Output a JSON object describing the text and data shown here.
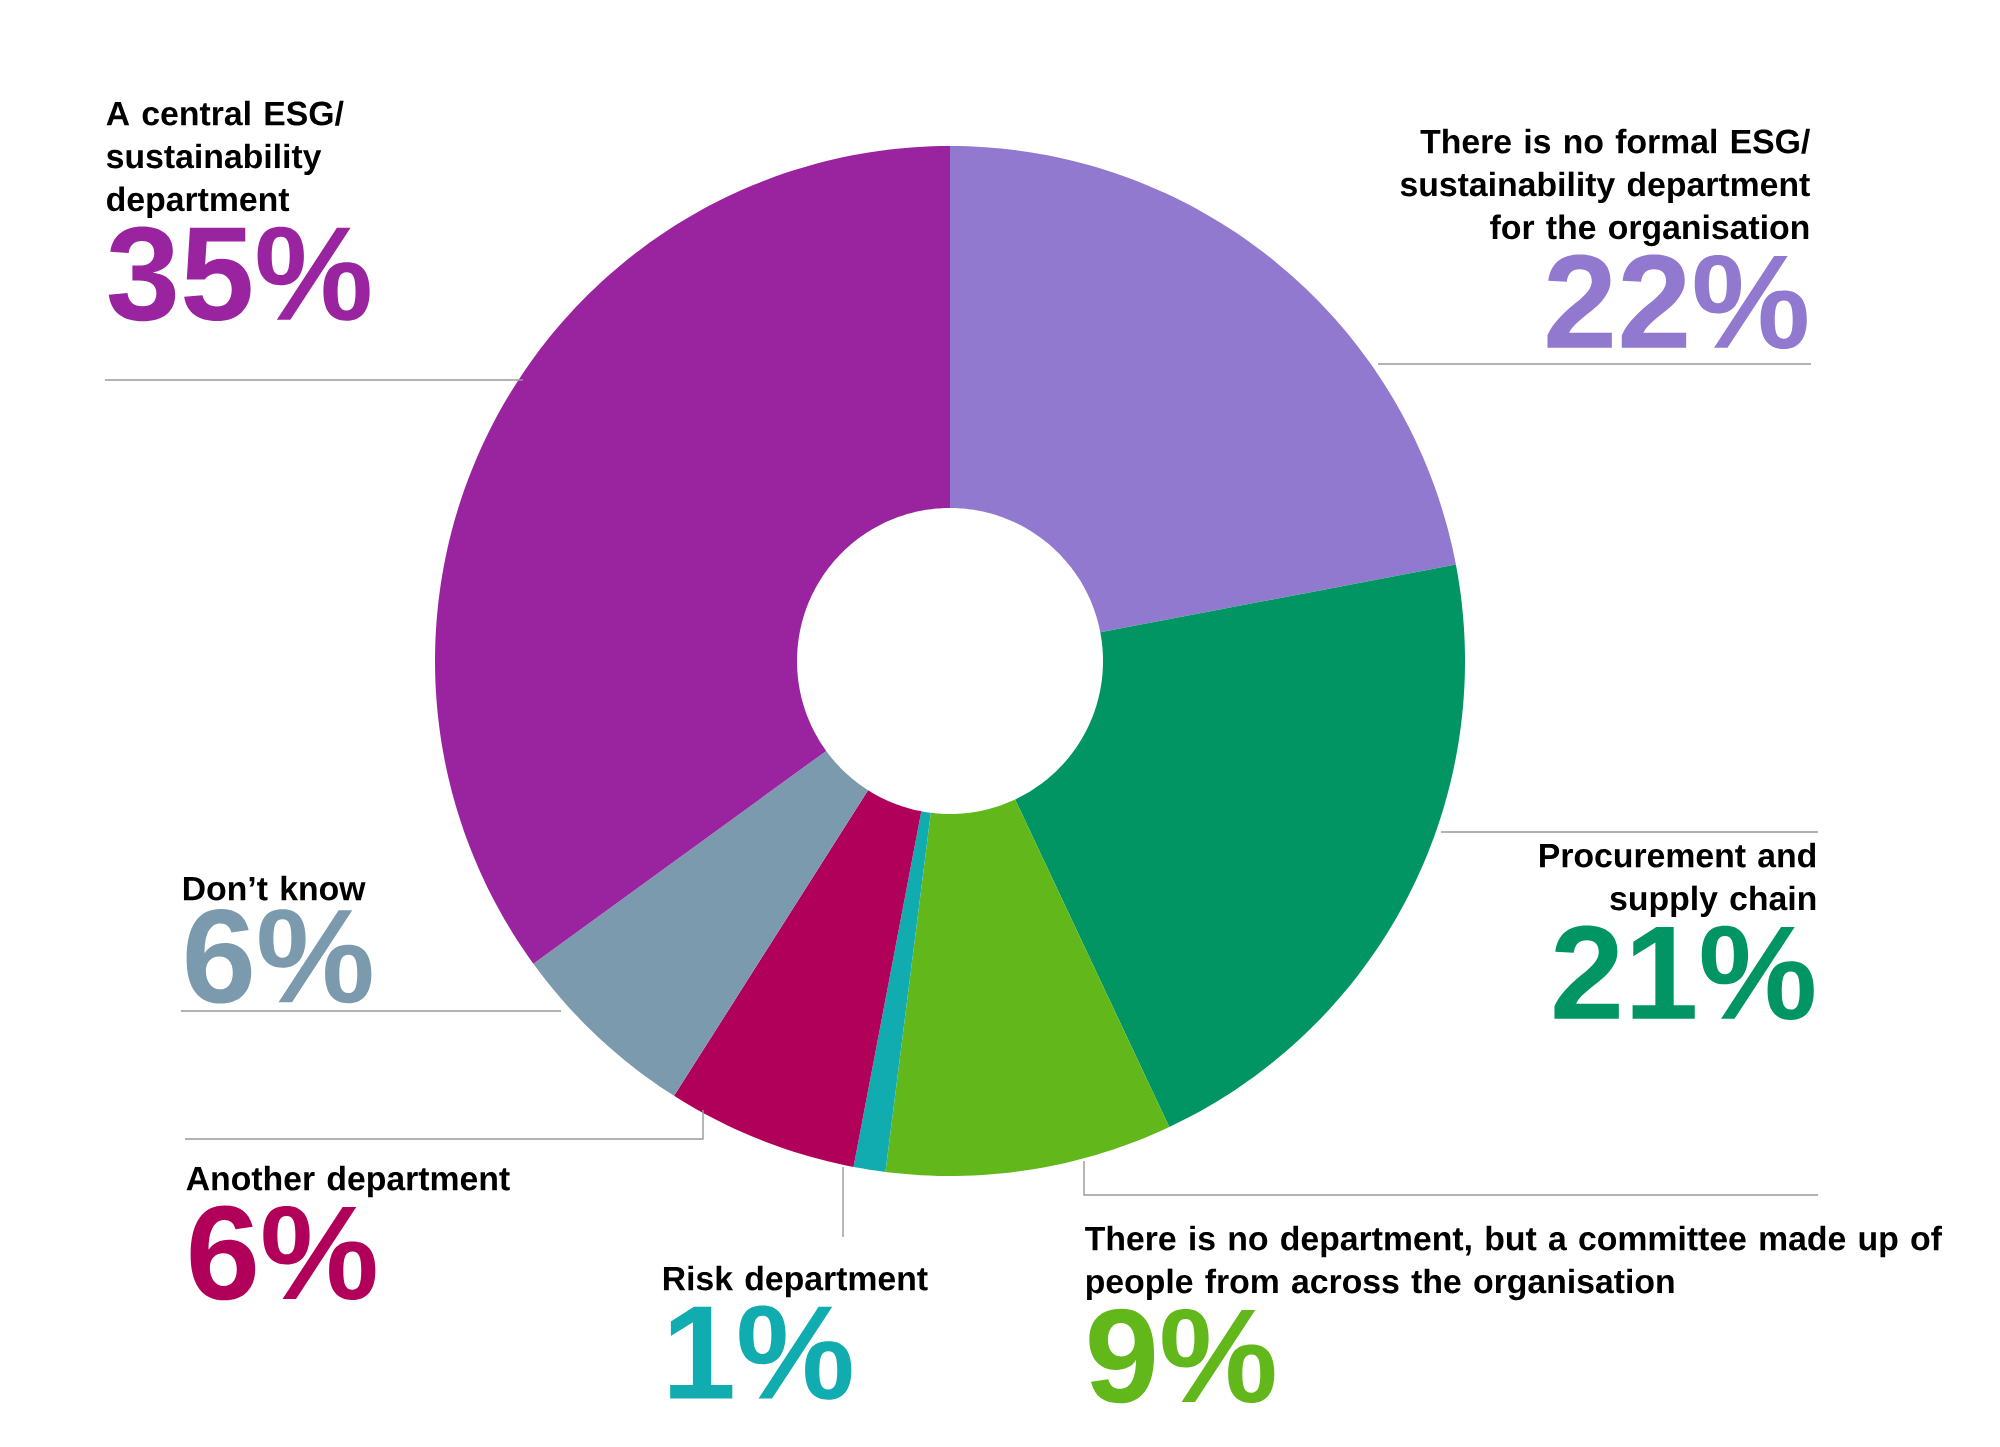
{
  "chart_data": {
    "type": "donut",
    "categories": [
      "There is no formal ESG/ sustainability department for the organisation",
      "Procurement and supply chain",
      "There is no department, but a committee made up of people from across the organisation",
      "Risk department",
      "Another department",
      "Don’t know",
      "A central ESG/ sustainability department"
    ],
    "values": [
      22,
      21,
      9,
      1,
      6,
      6,
      35
    ],
    "value_labels": [
      "22%",
      "21%",
      "9%",
      "1%",
      "6%",
      "6%",
      "35%"
    ],
    "colors": [
      "#9179d0",
      "#009562",
      "#62b81a",
      "#10acb0",
      "#b0005a",
      "#7b9aad",
      "#9a24a0"
    ]
  }
}
